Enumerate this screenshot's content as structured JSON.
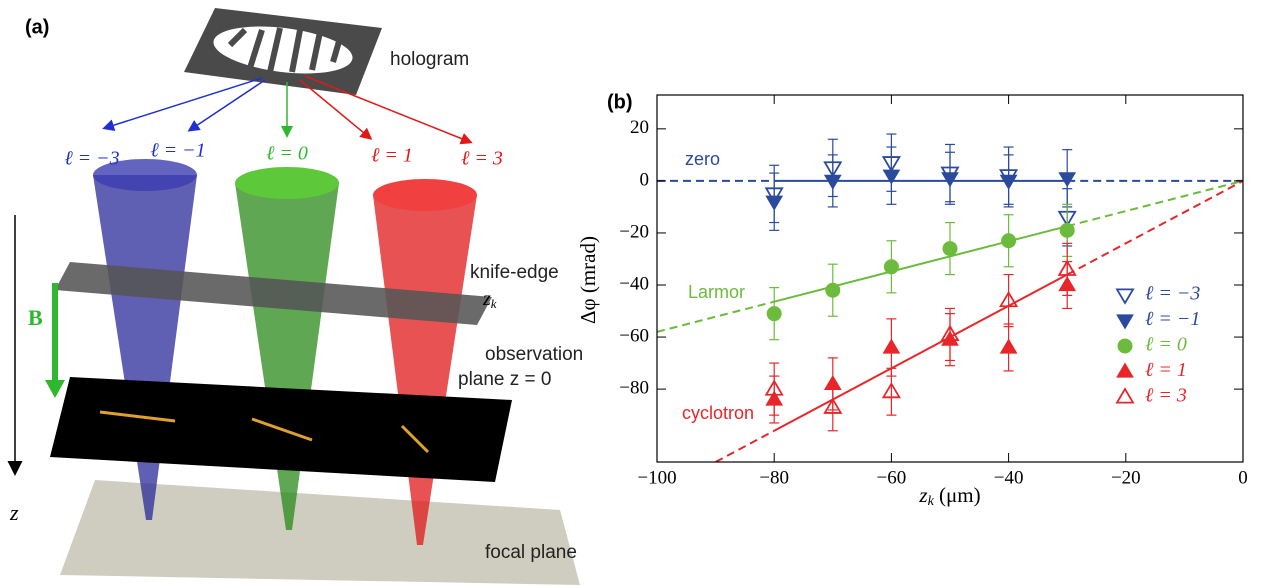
{
  "panel_a": {
    "label": "(a)",
    "hologram": "hologram",
    "orders": [
      "ℓ = −3",
      "ℓ = −1",
      "ℓ = 0",
      "ℓ = 1",
      "ℓ = 3"
    ],
    "knife_edge": "knife-edge",
    "knife_edge_symbol": {
      "main": "z",
      "sub": "k"
    },
    "field": "B",
    "observation": [
      "observation",
      "plane z = 0"
    ],
    "axis": "z",
    "focal_plane": "focal plane"
  },
  "chart_data": {
    "type": "scatter",
    "panel_label": "(b)",
    "xlabel": {
      "main": "z",
      "sub": "k",
      "unit": " (μm)"
    },
    "ylabel": "Δφ (mrad)",
    "xlim": [
      -100,
      0
    ],
    "ylim": [
      -108,
      33
    ],
    "xticks": [
      {
        "value": -100,
        "label": "−100"
      },
      {
        "value": -80,
        "label": "−80"
      },
      {
        "value": -60,
        "label": "−60"
      },
      {
        "value": -40,
        "label": "−40"
      },
      {
        "value": -20,
        "label": "−20"
      },
      0
    ],
    "yticks": [
      20,
      0,
      {
        "value": -20,
        "label": "−20"
      },
      {
        "value": -40,
        "label": "−40"
      },
      {
        "value": -60,
        "label": "−60"
      },
      {
        "value": -80,
        "label": "−80"
      }
    ],
    "x": [
      -80,
      -70,
      -60,
      -50,
      -40,
      -30
    ],
    "series": [
      {
        "name": "ℓ = −3",
        "color": "#2b4a9e",
        "marker": "triangle-down-open",
        "values": [
          -5,
          5,
          7,
          3,
          2,
          -14
        ],
        "errors": [
          11,
          11,
          11,
          11,
          11,
          11
        ]
      },
      {
        "name": "ℓ = −1",
        "color": "#2b4a9e",
        "marker": "triangle-down",
        "values": [
          -8,
          0,
          2,
          1,
          0,
          1
        ],
        "errors": [
          11,
          10,
          11,
          10,
          10,
          11
        ]
      },
      {
        "name": "ℓ = 0",
        "color": "#6cbb3c",
        "marker": "circle",
        "values": [
          -51,
          -42,
          -33,
          -26,
          -23,
          -19
        ],
        "errors": [
          10,
          10,
          10,
          10,
          10,
          10
        ]
      },
      {
        "name": "ℓ = 1",
        "color": "#e8262a",
        "marker": "triangle-up",
        "values": [
          -84,
          -78,
          -64,
          -61,
          -64,
          -40
        ],
        "errors": [
          9,
          10,
          11,
          10,
          9,
          9
        ]
      },
      {
        "name": "ℓ = 3",
        "color": "#e8262a",
        "marker": "triangle-up-open",
        "values": [
          -80,
          -87,
          -81,
          -59,
          -46,
          -34
        ],
        "errors": [
          10,
          9,
          9,
          10,
          10,
          10
        ]
      }
    ],
    "fits": [
      {
        "label": "zero",
        "color": "#2b4a9e",
        "x": [
          -100,
          -80,
          -30,
          0
        ],
        "values": [
          0,
          0,
          0,
          0
        ],
        "styles": [
          "dashed",
          "solid",
          "dashed"
        ]
      },
      {
        "label": "Larmor",
        "color": "#6cbb3c",
        "x": [
          -100,
          -80,
          -30,
          0
        ],
        "values": [
          -58,
          -46.4,
          -17.4,
          0
        ],
        "styles": [
          "dashed",
          "solid",
          "dashed"
        ]
      },
      {
        "label": "cyclotron",
        "color": "#e8262a",
        "x": [
          -90,
          -80,
          -30,
          0
        ],
        "values": [
          -108,
          -96,
          -36,
          0
        ],
        "styles": [
          "dashed",
          "solid",
          "dashed"
        ]
      }
    ]
  }
}
